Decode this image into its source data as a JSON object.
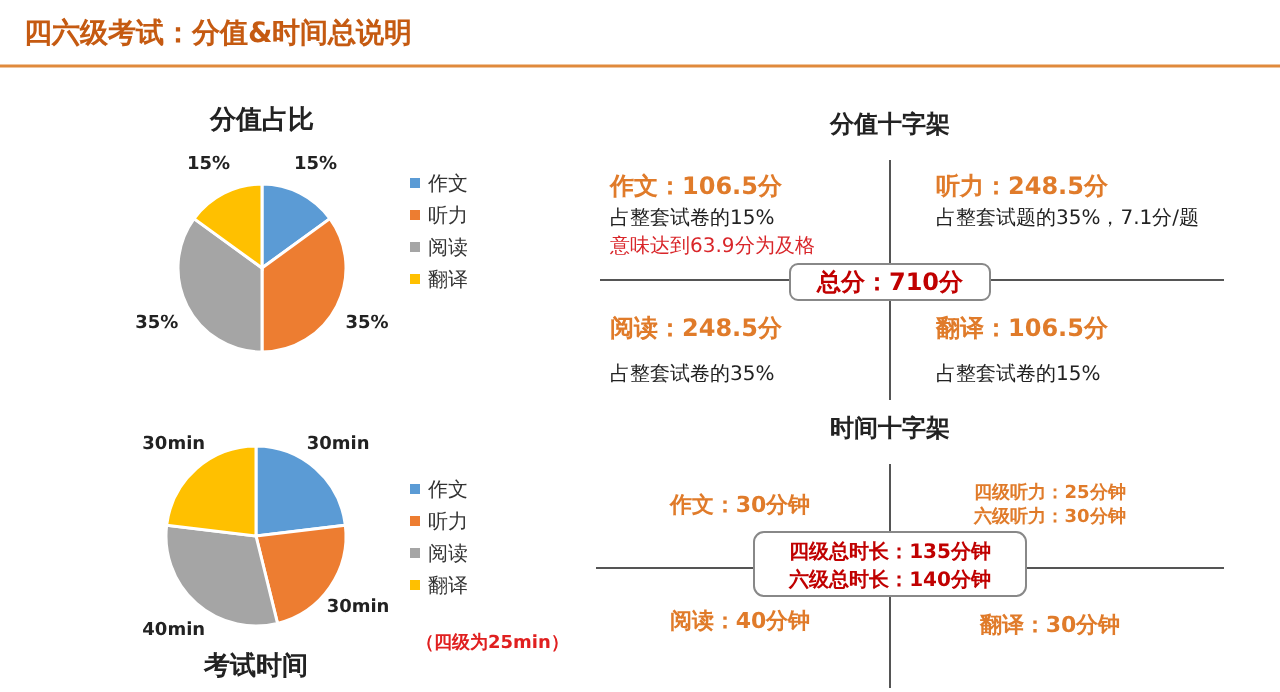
{
  "chart_data": [
    {
      "type": "other",
      "title": "四六级考试：分值&时间总说明"
    },
    {
      "type": "pie",
      "title": "分值占比",
      "categories": [
        "作文",
        "听力",
        "阅读",
        "翻译"
      ],
      "values": [
        15,
        35,
        35,
        15
      ],
      "colors": [
        "#5b9bd5",
        "#ed7d31",
        "#a5a5a5",
        "#ffc000"
      ],
      "value_labels": [
        "15%",
        "35%",
        "35%",
        "15%"
      ],
      "legend": "right"
    },
    {
      "type": "pie",
      "title": "考试时间",
      "categories": [
        "作文",
        "听力",
        "阅读",
        "翻译"
      ],
      "values": [
        30,
        30,
        40,
        30
      ],
      "colors": [
        "#5b9bd5",
        "#ed7d31",
        "#a5a5a5",
        "#ffc000"
      ],
      "value_labels": [
        "30min",
        "30min",
        "40min",
        "30min"
      ],
      "legend": "right",
      "annotations": [
        "（四级为25min）"
      ]
    },
    {
      "type": "other",
      "title": "分值十字架",
      "annotations": [
        "作文：106.5分",
        "占整套试卷的15%",
        "意味达到63.9分为及格",
        "听力：248.5分",
        "占整套试题的35%，7.1分/题",
        "总分：710分",
        "阅读：248.5分",
        "占整套试卷的35%",
        "翻译：106.5分",
        "占整套试卷的15%"
      ]
    },
    {
      "type": "other",
      "title": "时间十字架",
      "annotations": [
        "作文：30分钟",
        "四级听力：25分钟",
        "六级听力：30分钟",
        "四级总时长：135分钟",
        "六级总时长：140分钟",
        "阅读：40分钟",
        "翻译：30分钟"
      ]
    }
  ]
}
